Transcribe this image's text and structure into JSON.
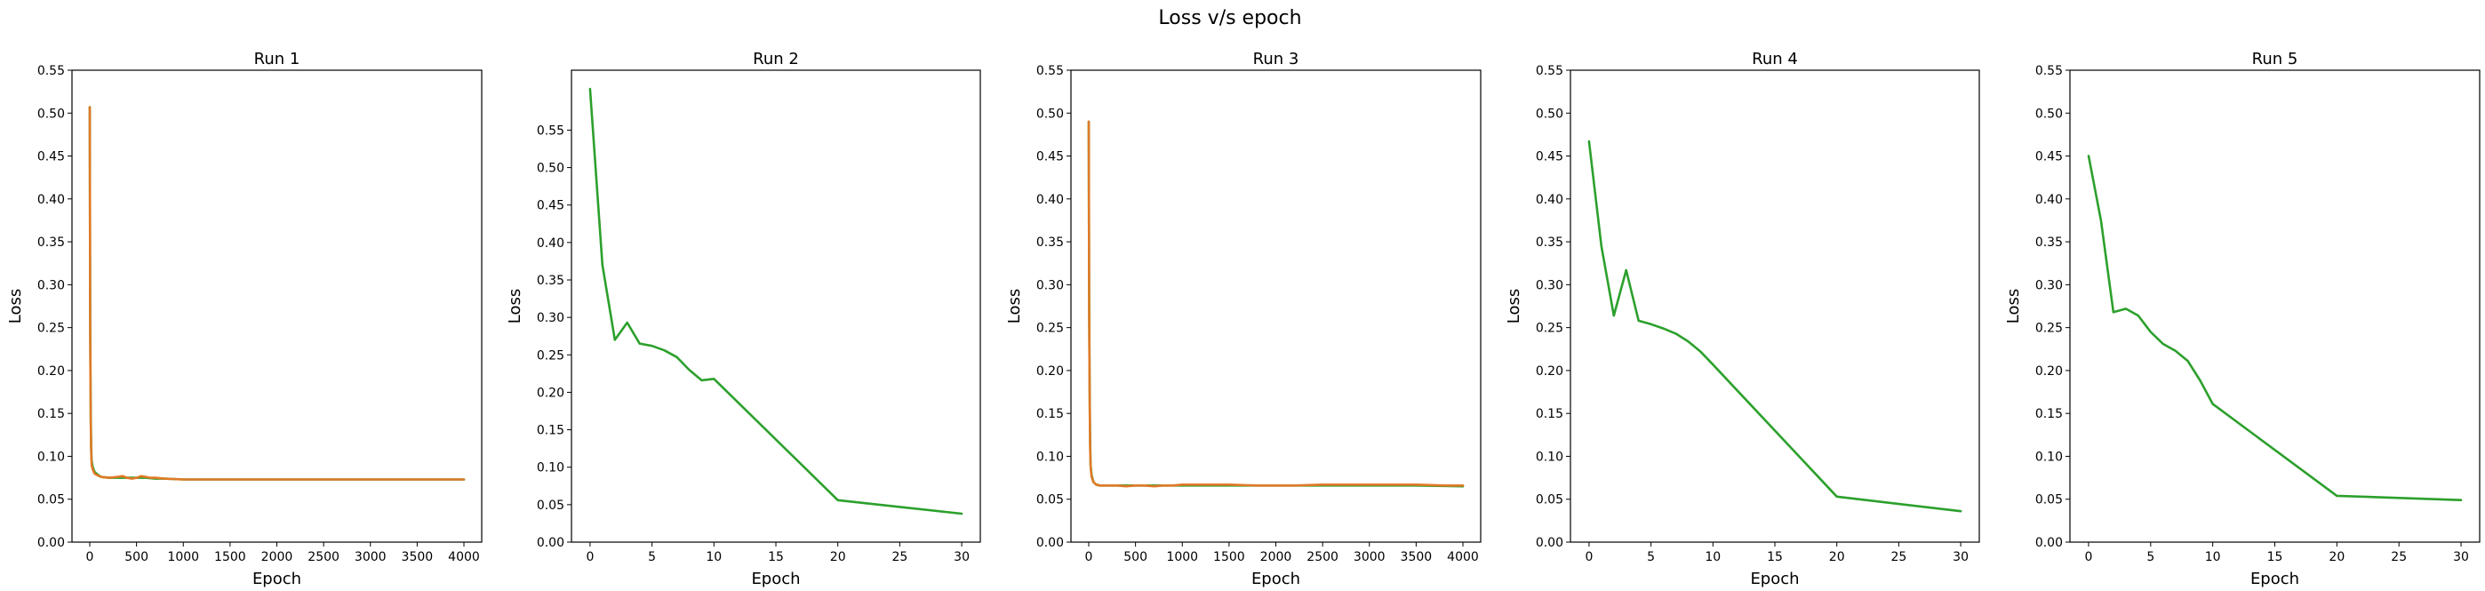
{
  "figure": {
    "title": "Loss v/s epoch"
  },
  "chart_data": [
    {
      "type": "line",
      "title": "Run 1",
      "xlabel": "Epoch",
      "ylabel": "Loss",
      "xlim": [
        -190,
        4190
      ],
      "ylim": [
        0,
        0.55
      ],
      "xticks": [
        0,
        500,
        1000,
        1500,
        2000,
        2500,
        3000,
        3500,
        4000
      ],
      "yticks": [
        0.0,
        0.05,
        0.1,
        0.15,
        0.2,
        0.25,
        0.3,
        0.35,
        0.4,
        0.45,
        0.5,
        0.55
      ],
      "grid": false,
      "series": [
        {
          "color": "#2ca02c",
          "x": [
            0,
            5,
            10,
            15,
            20,
            30,
            50,
            80,
            120,
            200,
            300,
            400,
            500,
            600,
            700,
            800,
            1000,
            1500,
            2000,
            2500,
            3000,
            3500,
            4000
          ],
          "y": [
            0.507,
            0.25,
            0.15,
            0.11,
            0.095,
            0.088,
            0.082,
            0.079,
            0.076,
            0.075,
            0.075,
            0.075,
            0.075,
            0.075,
            0.074,
            0.074,
            0.073,
            0.073,
            0.073,
            0.073,
            0.073,
            0.073,
            0.073
          ]
        },
        {
          "color": "#e07a27",
          "x": [
            0,
            5,
            10,
            15,
            20,
            30,
            50,
            80,
            120,
            200,
            300,
            350,
            400,
            450,
            500,
            550,
            600,
            650,
            700,
            800,
            1000,
            1500,
            2000,
            2500,
            3000,
            3500,
            4000
          ],
          "y": [
            0.507,
            0.24,
            0.14,
            0.105,
            0.09,
            0.085,
            0.08,
            0.078,
            0.076,
            0.075,
            0.076,
            0.077,
            0.075,
            0.074,
            0.075,
            0.077,
            0.076,
            0.075,
            0.075,
            0.074,
            0.073,
            0.073,
            0.073,
            0.073,
            0.073,
            0.073,
            0.073
          ]
        }
      ]
    },
    {
      "type": "line",
      "title": "Run 2",
      "xlabel": "Epoch",
      "ylabel": "Loss",
      "xlim": [
        -1.5,
        31.5
      ],
      "ylim": [
        0,
        0.63
      ],
      "xticks": [
        0,
        5,
        10,
        15,
        20,
        25,
        30
      ],
      "yticks": [
        0.0,
        0.05,
        0.1,
        0.15,
        0.2,
        0.25,
        0.3,
        0.35,
        0.4,
        0.45,
        0.5,
        0.55
      ],
      "grid": false,
      "series": [
        {
          "color": "#2ca02c",
          "x": [
            0,
            1,
            2,
            3,
            4,
            5,
            6,
            7,
            8,
            9,
            10,
            20,
            30
          ],
          "y": [
            0.605,
            0.37,
            0.27,
            0.293,
            0.265,
            0.262,
            0.256,
            0.247,
            0.23,
            0.216,
            0.218,
            0.056,
            0.038
          ]
        }
      ]
    },
    {
      "type": "line",
      "title": "Run 3",
      "xlabel": "Epoch",
      "ylabel": "Loss",
      "xlim": [
        -190,
        4190
      ],
      "ylim": [
        0,
        0.55
      ],
      "xticks": [
        0,
        500,
        1000,
        1500,
        2000,
        2500,
        3000,
        3500,
        4000
      ],
      "yticks": [
        0.0,
        0.05,
        0.1,
        0.15,
        0.2,
        0.25,
        0.3,
        0.35,
        0.4,
        0.45,
        0.5,
        0.55
      ],
      "grid": false,
      "series": [
        {
          "color": "#2ca02c",
          "x": [
            0,
            5,
            10,
            15,
            20,
            30,
            50,
            80,
            120,
            200,
            300,
            500,
            700,
            900,
            1000,
            1500,
            2000,
            2500,
            3000,
            3500,
            4000
          ],
          "y": [
            0.49,
            0.27,
            0.17,
            0.115,
            0.09,
            0.078,
            0.07,
            0.067,
            0.066,
            0.066,
            0.066,
            0.066,
            0.066,
            0.066,
            0.066,
            0.066,
            0.066,
            0.066,
            0.066,
            0.066,
            0.065
          ]
        },
        {
          "color": "#e07a27",
          "x": [
            0,
            5,
            10,
            15,
            20,
            30,
            50,
            80,
            120,
            200,
            300,
            400,
            500,
            600,
            700,
            800,
            900,
            1000,
            1500,
            1800,
            2000,
            2200,
            2500,
            3000,
            3500,
            3800,
            4000
          ],
          "y": [
            0.49,
            0.26,
            0.16,
            0.11,
            0.088,
            0.076,
            0.07,
            0.067,
            0.066,
            0.066,
            0.066,
            0.065,
            0.066,
            0.066,
            0.065,
            0.066,
            0.066,
            0.067,
            0.067,
            0.066,
            0.066,
            0.066,
            0.067,
            0.067,
            0.067,
            0.066,
            0.066
          ]
        }
      ]
    },
    {
      "type": "line",
      "title": "Run 4",
      "xlabel": "Epoch",
      "ylabel": "Loss",
      "xlim": [
        -1.5,
        31.5
      ],
      "ylim": [
        0,
        0.55
      ],
      "xticks": [
        0,
        5,
        10,
        15,
        20,
        25,
        30
      ],
      "yticks": [
        0.0,
        0.05,
        0.1,
        0.15,
        0.2,
        0.25,
        0.3,
        0.35,
        0.4,
        0.45,
        0.5,
        0.55
      ],
      "grid": false,
      "series": [
        {
          "color": "#2ca02c",
          "x": [
            0,
            1,
            2,
            3,
            4,
            5,
            6,
            7,
            8,
            9,
            10,
            20,
            30
          ],
          "y": [
            0.467,
            0.345,
            0.264,
            0.317,
            0.258,
            0.254,
            0.249,
            0.243,
            0.234,
            0.222,
            0.207,
            0.053,
            0.036
          ]
        }
      ]
    },
    {
      "type": "line",
      "title": "Run 5",
      "xlabel": "Epoch",
      "ylabel": "Loss",
      "xlim": [
        -1.5,
        31.5
      ],
      "ylim": [
        0,
        0.55
      ],
      "xticks": [
        0,
        5,
        10,
        15,
        20,
        25,
        30
      ],
      "yticks": [
        0.0,
        0.05,
        0.1,
        0.15,
        0.2,
        0.25,
        0.3,
        0.35,
        0.4,
        0.45,
        0.5,
        0.55
      ],
      "grid": false,
      "series": [
        {
          "color": "#2ca02c",
          "x": [
            0,
            1,
            2,
            3,
            4,
            5,
            6,
            7,
            8,
            9,
            10,
            20,
            30
          ],
          "y": [
            0.45,
            0.375,
            0.268,
            0.272,
            0.264,
            0.245,
            0.231,
            0.223,
            0.211,
            0.188,
            0.161,
            0.054,
            0.049
          ]
        }
      ]
    }
  ]
}
